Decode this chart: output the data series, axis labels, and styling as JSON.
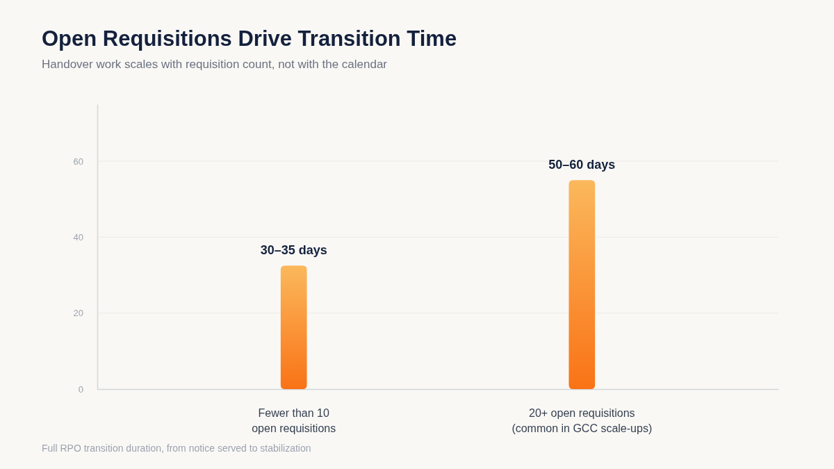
{
  "chart_data": {
    "type": "bar",
    "title": "Open Requisitions Drive Transition Time",
    "subtitle": "Handover work scales with requisition count, not with the calendar",
    "categories": [
      "Fewer than 10\nopen requisitions",
      "20+ open requisitions\n(common in GCC scale-ups)"
    ],
    "values": [
      32.5,
      55
    ],
    "value_labels": [
      "30–35 days",
      "50–60 days"
    ],
    "color": "#f97316",
    "ylim": [
      0,
      75
    ],
    "yticks": [
      0,
      20,
      40,
      60
    ],
    "grid": "y",
    "annotations": [
      "Full RPO transition duration, from notice served to stabilization"
    ]
  }
}
